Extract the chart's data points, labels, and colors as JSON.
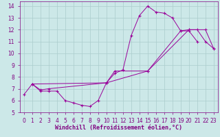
{
  "xlabel": "Windchill (Refroidissement éolien,°C)",
  "background_color": "#cce8e8",
  "grid_color": "#aacccc",
  "line_color": "#990099",
  "xlim": [
    -0.5,
    23.5
  ],
  "ylim": [
    5,
    14.4
  ],
  "xticks": [
    0,
    1,
    2,
    3,
    4,
    5,
    6,
    7,
    8,
    9,
    10,
    11,
    12,
    13,
    14,
    15,
    16,
    17,
    18,
    19,
    20,
    21,
    22,
    23
  ],
  "yticks": [
    5,
    6,
    7,
    8,
    9,
    10,
    11,
    12,
    13,
    14
  ],
  "line1_x": [
    0,
    1,
    2,
    3,
    4,
    5,
    6,
    7,
    8,
    9,
    10,
    11,
    12,
    13,
    14,
    15,
    16,
    17,
    18,
    19,
    20,
    21
  ],
  "line1_y": [
    6.5,
    7.4,
    6.8,
    6.8,
    6.8,
    6.0,
    5.8,
    5.6,
    5.5,
    6.0,
    7.5,
    8.3,
    8.6,
    11.5,
    13.2,
    14.0,
    13.5,
    13.4,
    13.0,
    11.9,
    11.9,
    11.0
  ],
  "line2_x": [
    1,
    2,
    3,
    10,
    11,
    15,
    19,
    20,
    21,
    22,
    23
  ],
  "line2_y": [
    7.4,
    6.9,
    7.0,
    7.5,
    8.5,
    8.5,
    11.9,
    12.0,
    12.0,
    11.0,
    10.4
  ],
  "line3_x": [
    1,
    10,
    15,
    20,
    22,
    23
  ],
  "line3_y": [
    7.4,
    7.5,
    8.5,
    12.0,
    12.0,
    10.4
  ],
  "font_color": "#800080",
  "tick_fontsize": 5.5,
  "label_fontsize": 6.0
}
